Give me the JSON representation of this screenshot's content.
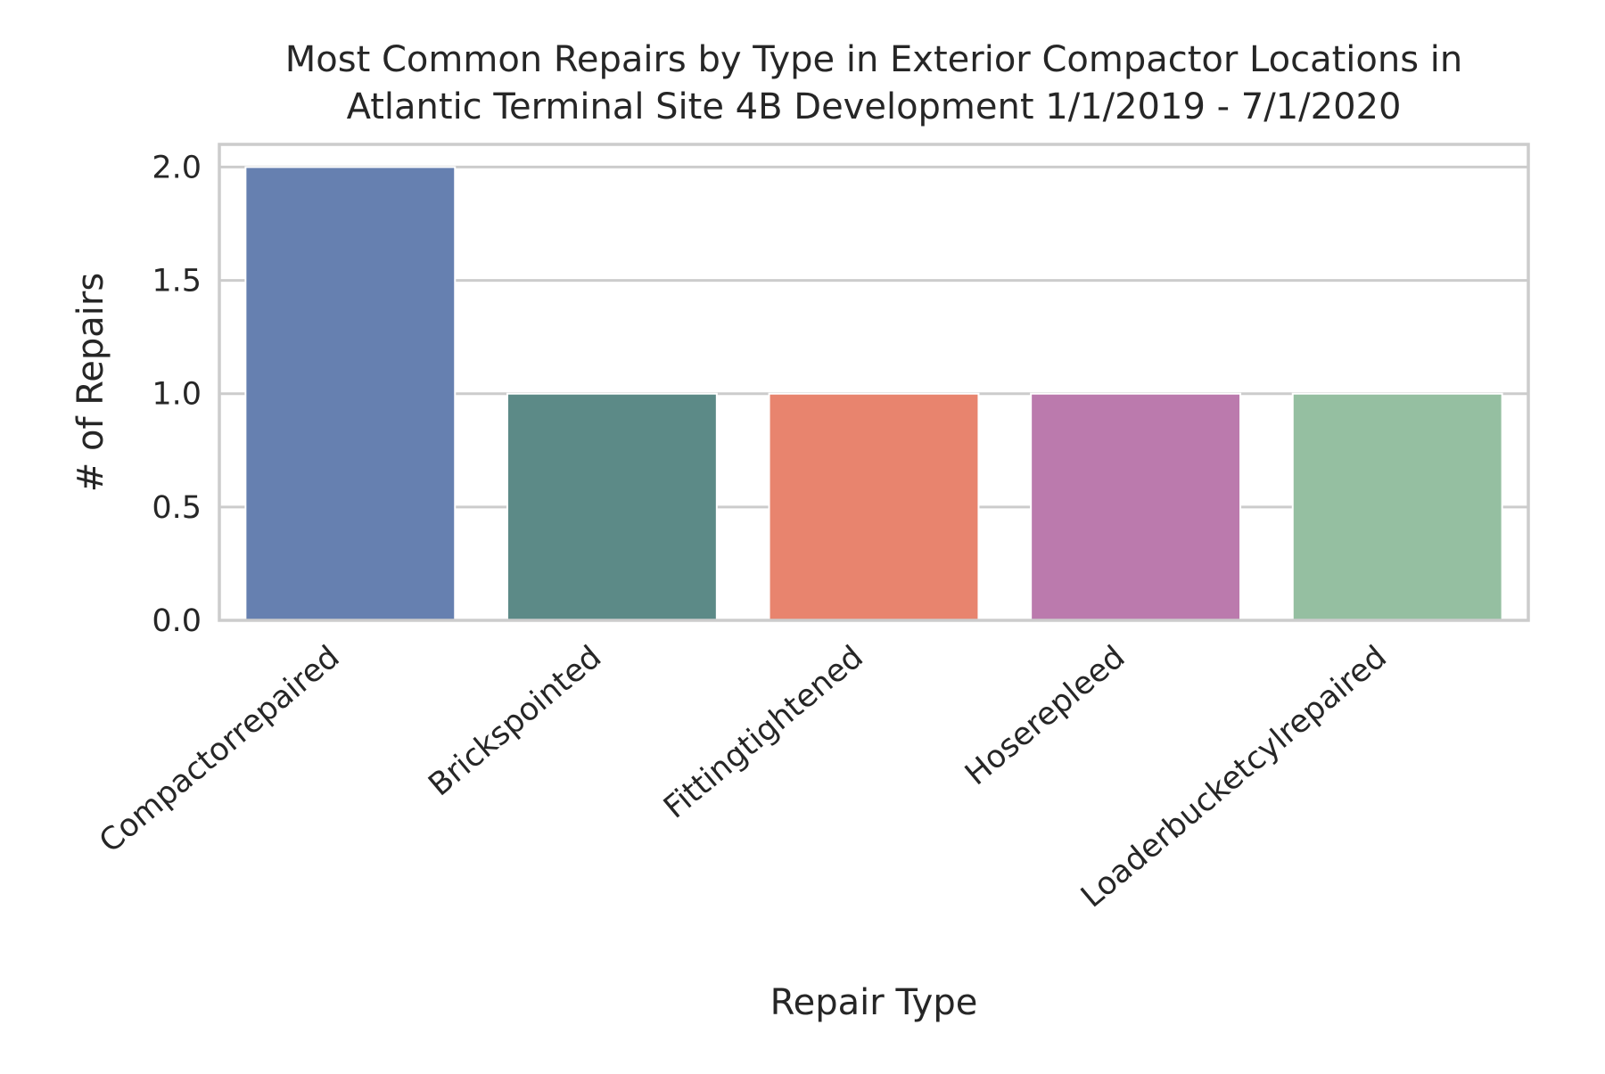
{
  "chart_data": {
    "type": "bar",
    "title_lines": [
      "Most Common Repairs by Type in Exterior Compactor Locations in",
      "Atlantic Terminal Site 4B Development 1/1/2019 - 7/1/2020"
    ],
    "xlabel": "Repair Type",
    "ylabel": "# of Repairs",
    "categories": [
      "Compactorrepaired",
      "Brickspointed",
      "Fittingtightened",
      "Hoserepleed",
      "Loaderbucketcylrepaired"
    ],
    "values": [
      2,
      1,
      1,
      1,
      1
    ],
    "colors": [
      "#6680b0",
      "#5c8a87",
      "#e8846e",
      "#bb7aad",
      "#95bfa1"
    ],
    "ylim": [
      0,
      2.1
    ],
    "yticks": [
      0.0,
      0.5,
      1.0,
      1.5,
      2.0
    ],
    "ytick_labels": [
      "0.0",
      "0.5",
      "1.0",
      "1.5",
      "2.0"
    ],
    "grid": "horizontal",
    "legend": "none"
  }
}
